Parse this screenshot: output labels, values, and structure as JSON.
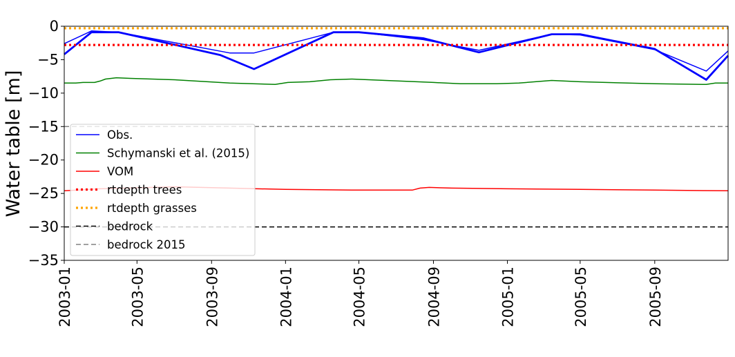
{
  "chart_data": {
    "type": "line",
    "title": "",
    "xlabel": "",
    "ylabel": "Water table [m]",
    "ylim": [
      -35,
      0
    ],
    "xlim": [
      "2003-01-01",
      "2005-12-31"
    ],
    "yticks": [
      0,
      -5,
      -10,
      -15,
      -20,
      -25,
      -30,
      -35
    ],
    "ytick_labels": [
      "0",
      "−5",
      "−10",
      "−15",
      "−20",
      "−25",
      "−30",
      "−35"
    ],
    "xticks": [
      "2003-01-01",
      "2003-05-01",
      "2003-09-01",
      "2004-01-01",
      "2004-05-01",
      "2004-09-01",
      "2005-01-01",
      "2005-05-01",
      "2005-09-01"
    ],
    "xtick_labels": [
      "2003-01",
      "2003-05",
      "2003-09",
      "2004-01",
      "2004-05",
      "2004-09",
      "2005-01",
      "2005-05",
      "2005-09"
    ],
    "grid": false,
    "legend_position": "lower-left",
    "series": [
      {
        "name": "Obs.",
        "color": "#0000ff",
        "style": "solid",
        "lines": [
          {
            "width": 2.8,
            "points": [
              [
                "2003-01-01",
                -4.2
              ],
              [
                "2003-02-15",
                -0.9
              ],
              [
                "2003-04-01",
                -0.9
              ],
              [
                "2003-09-15",
                -4.3
              ],
              [
                "2003-11-10",
                -6.4
              ],
              [
                "2004-03-20",
                -0.9
              ],
              [
                "2004-05-01",
                -0.9
              ],
              [
                "2004-08-15",
                -1.8
              ],
              [
                "2004-11-15",
                -3.9
              ],
              [
                "2005-03-15",
                -1.2
              ],
              [
                "2005-05-01",
                -1.2
              ],
              [
                "2005-09-01",
                -3.4
              ],
              [
                "2005-11-25",
                -8.0
              ],
              [
                "2005-12-31",
                -4.4
              ]
            ]
          },
          {
            "width": 1.5,
            "points": [
              [
                "2003-01-01",
                -2.6
              ],
              [
                "2003-02-15",
                -0.7
              ],
              [
                "2003-04-01",
                -0.9
              ],
              [
                "2003-10-01",
                -4.0
              ],
              [
                "2003-11-10",
                -4.0
              ],
              [
                "2004-03-20",
                -0.9
              ],
              [
                "2004-05-01",
                -0.9
              ],
              [
                "2004-08-15",
                -2.0
              ],
              [
                "2004-11-15",
                -3.6
              ],
              [
                "2005-03-15",
                -1.2
              ],
              [
                "2005-05-01",
                -1.3
              ],
              [
                "2005-09-01",
                -3.5
              ],
              [
                "2005-11-25",
                -6.7
              ],
              [
                "2005-12-31",
                -3.7
              ]
            ]
          }
        ]
      },
      {
        "name": "Schymanski et al. (2015)",
        "color": "#008000",
        "style": "solid",
        "points": [
          [
            "2003-01-01",
            -8.5
          ],
          [
            "2003-01-20",
            -8.5
          ],
          [
            "2003-02-01",
            -8.4
          ],
          [
            "2003-02-20",
            -8.4
          ],
          [
            "2003-03-01",
            -8.2
          ],
          [
            "2003-03-10",
            -7.9
          ],
          [
            "2003-03-28",
            -7.7
          ],
          [
            "2003-04-20",
            -7.8
          ],
          [
            "2003-07-01",
            -8.0
          ],
          [
            "2003-10-01",
            -8.5
          ],
          [
            "2003-12-15",
            -8.7
          ],
          [
            "2004-01-05",
            -8.4
          ],
          [
            "2004-02-10",
            -8.3
          ],
          [
            "2004-03-15",
            -8.0
          ],
          [
            "2004-04-20",
            -7.9
          ],
          [
            "2004-09-01",
            -8.4
          ],
          [
            "2004-10-15",
            -8.6
          ],
          [
            "2004-12-15",
            -8.6
          ],
          [
            "2005-01-20",
            -8.5
          ],
          [
            "2005-03-15",
            -8.1
          ],
          [
            "2005-05-01",
            -8.3
          ],
          [
            "2005-09-01",
            -8.6
          ],
          [
            "2005-11-25",
            -8.7
          ],
          [
            "2005-12-10",
            -8.5
          ],
          [
            "2005-12-31",
            -8.5
          ]
        ]
      },
      {
        "name": "VOM",
        "color": "#ff0000",
        "style": "solid",
        "points": [
          [
            "2003-01-01",
            -24.6
          ],
          [
            "2003-03-01",
            -24.3
          ],
          [
            "2003-07-01",
            -24.0
          ],
          [
            "2003-10-01",
            -24.2
          ],
          [
            "2004-01-01",
            -24.4
          ],
          [
            "2004-05-01",
            -24.5
          ],
          [
            "2004-07-28",
            -24.5
          ],
          [
            "2004-08-10",
            -24.2
          ],
          [
            "2004-08-25",
            -24.1
          ],
          [
            "2004-10-01",
            -24.2
          ],
          [
            "2005-01-01",
            -24.3
          ],
          [
            "2005-05-01",
            -24.4
          ],
          [
            "2005-09-01",
            -24.5
          ],
          [
            "2005-12-31",
            -24.6
          ]
        ]
      },
      {
        "name": "rtdepth trees",
        "color": "#ff0000",
        "style": "dotted",
        "y": -2.8
      },
      {
        "name": "rtdepth grasses",
        "color": "#ffa500",
        "style": "dotted",
        "y": -0.3
      },
      {
        "name": "bedrock",
        "color": "#000000",
        "style": "dashed",
        "y": -30
      },
      {
        "name": "bedrock 2015",
        "color": "#808080",
        "style": "dashed",
        "y": -15
      }
    ]
  }
}
